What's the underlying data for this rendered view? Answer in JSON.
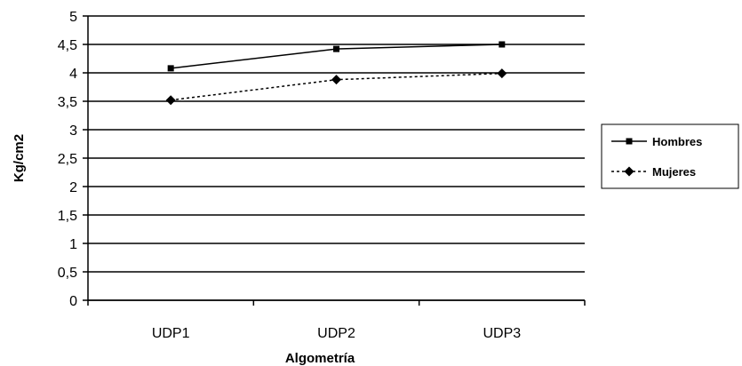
{
  "chart_data": {
    "type": "line",
    "title": "",
    "xlabel": "Algometría",
    "ylabel": "Kg/cm2",
    "categories": [
      "UDP1",
      "UDP2",
      "UDP3"
    ],
    "ylim": [
      0,
      5
    ],
    "yticks": [
      0,
      0.5,
      1,
      1.5,
      2,
      2.5,
      3,
      3.5,
      4,
      4.5,
      5
    ],
    "ytick_labels": [
      "0",
      "0,5",
      "1",
      "1,5",
      "2",
      "2,5",
      "3",
      "3,5",
      "4",
      "4,5",
      "5"
    ],
    "grid": true,
    "legend_position": "right",
    "series": [
      {
        "name": "Hombres",
        "values": [
          4.08,
          4.42,
          4.5
        ],
        "line_style": "solid",
        "marker": "square",
        "color": "#000000"
      },
      {
        "name": "Mujeres",
        "values": [
          3.52,
          3.88,
          3.99
        ],
        "line_style": "dashed",
        "marker": "diamond",
        "color": "#000000"
      }
    ]
  }
}
